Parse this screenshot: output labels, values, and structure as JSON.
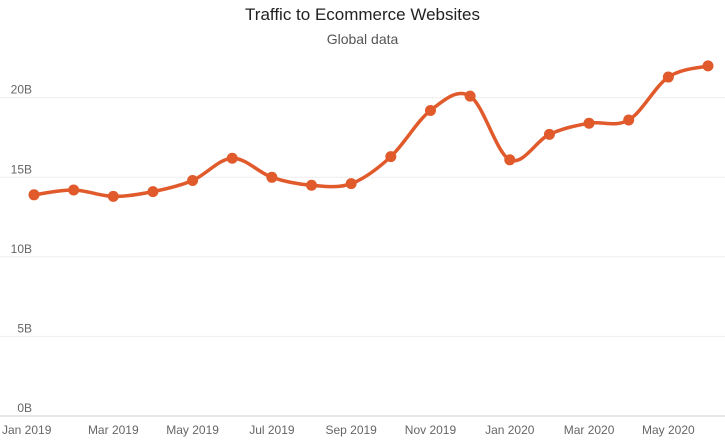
{
  "chart_data": {
    "type": "line",
    "title": "Traffic to Ecommerce Websites",
    "subtitle": "Global data",
    "xlabel": "",
    "ylabel": "",
    "x": [
      "Jan 2019",
      "Feb 2019",
      "Mar 2019",
      "Apr 2019",
      "May 2019",
      "Jun 2019",
      "Jul 2019",
      "Aug 2019",
      "Sep 2019",
      "Oct 2019",
      "Nov 2019",
      "Dec 2019",
      "Jan 2020",
      "Feb 2020",
      "Mar 2020",
      "Apr 2020",
      "May 2020",
      "Jun 2020"
    ],
    "x_tick_labels": [
      "Jan 2019",
      "Mar 2019",
      "May 2019",
      "Jul 2019",
      "Sep 2019",
      "Nov 2019",
      "Jan 2020",
      "Mar 2020",
      "May 2020"
    ],
    "y_tick_labels": [
      "0B",
      "5B",
      "10B",
      "15B",
      "20B"
    ],
    "y_ticks": [
      0,
      5,
      10,
      15,
      20
    ],
    "ylim": [
      0,
      23
    ],
    "y_unit": "billions",
    "grid": true,
    "series": [
      {
        "values": [
          13.9,
          14.2,
          13.8,
          14.1,
          14.8,
          16.2,
          15.0,
          14.5,
          14.6,
          16.3,
          19.2,
          20.1,
          16.1,
          17.7,
          18.4,
          18.6,
          21.3,
          22.0
        ]
      }
    ],
    "colors": {
      "line": "#e05a2b",
      "grid": "#eeeeee",
      "axis": "#cccccc"
    }
  }
}
